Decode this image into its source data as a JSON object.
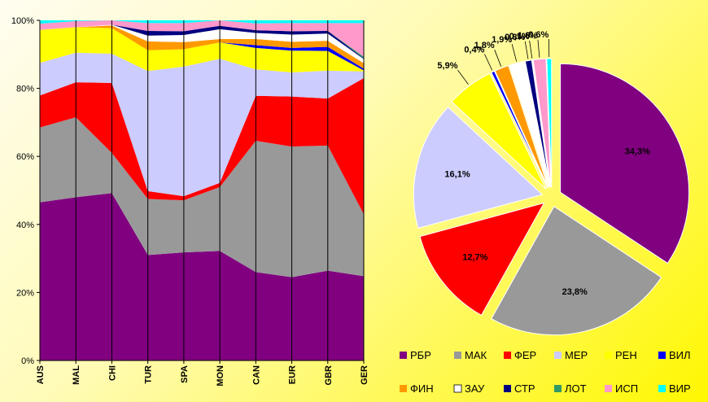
{
  "chart_data": [
    {
      "type": "area",
      "stacked": true,
      "percent": true,
      "categories": [
        "AUS",
        "MAL",
        "CHI",
        "TUR",
        "SPA",
        "MON",
        "CAN",
        "EUR",
        "GBR",
        "GER"
      ],
      "ylim": [
        0,
        100
      ],
      "yticks": [
        "0%",
        "20%",
        "40%",
        "60%",
        "80%",
        "100%"
      ],
      "grid": "vertical category lines",
      "series": [
        {
          "name": "РБР",
          "color": "#800080",
          "values": [
            46.5,
            48,
            49.2,
            31,
            31.8,
            32.2,
            26,
            24.5,
            26.4,
            24.8
          ]
        },
        {
          "name": "МАК",
          "color": "#999999",
          "values": [
            22,
            23.5,
            11.8,
            16.5,
            15.3,
            18.8,
            38.6,
            38.4,
            36.8,
            18.2
          ]
        },
        {
          "name": "ФЕР",
          "color": "#FF0000",
          "values": [
            9.4,
            10.3,
            20.6,
            2.3,
            1.2,
            1.2,
            13.2,
            14.7,
            13.8,
            40
          ]
        },
        {
          "name": "МЕР",
          "color": "#CCCCFF",
          "values": [
            9.6,
            8.7,
            8.6,
            35.3,
            38.1,
            36.5,
            7.8,
            7.1,
            8.2,
            2
          ]
        },
        {
          "name": "РЕН",
          "color": "#FFFF00",
          "values": [
            9.7,
            7.5,
            7.5,
            6.1,
            5.1,
            4.8,
            6.3,
            6.4,
            5.8,
            0.3
          ]
        },
        {
          "name": "ВИЛ",
          "color": "#0000FF",
          "values": [
            0,
            0,
            0,
            0,
            0,
            0,
            0.8,
            0.8,
            1.2,
            0.5
          ]
        },
        {
          "name": "ФИН",
          "color": "#FF9900",
          "values": [
            0,
            0,
            0.8,
            2.6,
            2.1,
            1,
            1.8,
            1.8,
            1.8,
            1.6
          ]
        },
        {
          "name": "ЗАУ",
          "color": "#FFFFFF",
          "values": [
            0,
            0,
            0.2,
            1.7,
            2.1,
            2.9,
            1.8,
            2.1,
            2.1,
            1.2
          ]
        },
        {
          "name": "СТР",
          "color": "#000080",
          "values": [
            0,
            0,
            0,
            1.4,
            1.1,
            1,
            0.8,
            1,
            0.8,
            0.2
          ]
        },
        {
          "name": "ЛОТ",
          "color": "#339966",
          "values": [
            0,
            0,
            0,
            0,
            0,
            0,
            0,
            0,
            0,
            0.5
          ]
        },
        {
          "name": "ИСП",
          "color": "#FF99CC",
          "values": [
            1.8,
            1.8,
            1.3,
            2.3,
            2.4,
            1.6,
            2,
            2.4,
            2.3,
            9.9
          ]
        },
        {
          "name": "ВИР",
          "color": "#00FFFF",
          "values": [
            1,
            0.2,
            0,
            0.8,
            0.8,
            0,
            0.9,
            0.8,
            0.8,
            0.8
          ]
        }
      ]
    },
    {
      "type": "pie",
      "exploded": true,
      "slices": [
        {
          "name": "РБР",
          "value": 34.3,
          "label": "34,3%",
          "color": "#800080"
        },
        {
          "name": "МАК",
          "value": 23.8,
          "label": "23,8%",
          "color": "#999999"
        },
        {
          "name": "ФЕР",
          "value": 12.7,
          "label": "12,7%",
          "color": "#FF0000"
        },
        {
          "name": "МЕР",
          "value": 16.1,
          "label": "16,1%",
          "color": "#CCCCFF"
        },
        {
          "name": "РЕН",
          "value": 5.9,
          "label": "5,9%",
          "color": "#FFFF00"
        },
        {
          "name": "ВИЛ",
          "value": 0.4,
          "label": "0,4%",
          "color": "#0000FF"
        },
        {
          "name": "ФИН",
          "value": 1.8,
          "label": "1,8%",
          "color": "#FF9900"
        },
        {
          "name": "ЗАУ",
          "value": 1.9,
          "label": "1,9%",
          "color": "#FFFFFF"
        },
        {
          "name": "СТР",
          "value": 0.8,
          "label": "0,8%",
          "color": "#000080"
        },
        {
          "name": "ЛОТ",
          "value": 0.1,
          "label": "0,1%",
          "color": "#339966"
        },
        {
          "name": "ИСП",
          "value": 1.6,
          "label": "1,6%",
          "color": "#FF99CC"
        },
        {
          "name": "ВИР",
          "value": 0.6,
          "label": "0,6%",
          "color": "#00FFFF"
        }
      ]
    }
  ],
  "legend": [
    {
      "name": "РБР",
      "color": "#800080"
    },
    {
      "name": "МАК",
      "color": "#999999"
    },
    {
      "name": "ФЕР",
      "color": "#FF0000"
    },
    {
      "name": "МЕР",
      "color": "#CCCCFF"
    },
    {
      "name": "РЕН",
      "color": "#FFFF00"
    },
    {
      "name": "ВИЛ",
      "color": "#0000FF"
    },
    {
      "name": "ФИН",
      "color": "#FF9900"
    },
    {
      "name": "ЗАУ",
      "color": "#FFFFFF"
    },
    {
      "name": "СТР",
      "color": "#000080"
    },
    {
      "name": "ЛОТ",
      "color": "#339966"
    },
    {
      "name": "ИСП",
      "color": "#FF99CC"
    },
    {
      "name": "ВИР",
      "color": "#00FFFF"
    }
  ]
}
